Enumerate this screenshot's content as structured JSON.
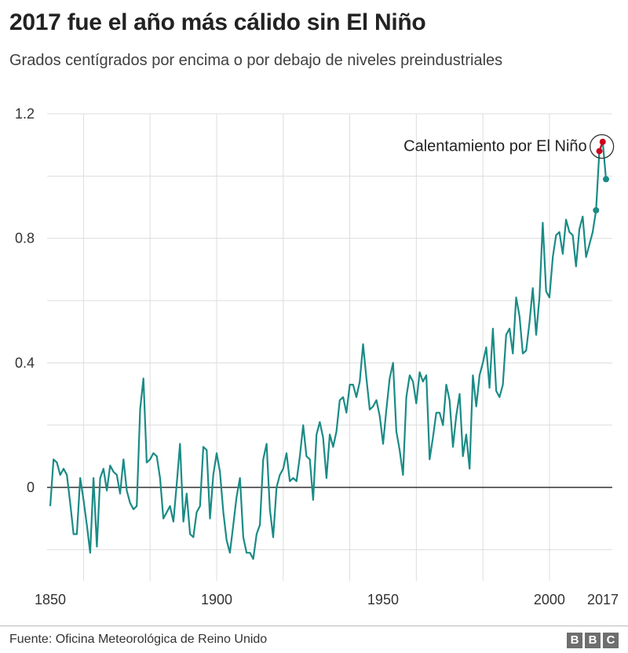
{
  "header": {
    "title": "2017 fue el año más cálido sin El Niño",
    "subtitle": "Grados centígrados por encima o por debajo de niveles preindustriales"
  },
  "footer": {
    "source": "Fuente: Oficina Meteorológica de Reino Unido",
    "logo": [
      "B",
      "B",
      "C"
    ]
  },
  "colors": {
    "line": "#1a8b86",
    "highlight": "#d0021b",
    "grid": "#dddddd",
    "zero_line": "#333333",
    "text": "#222222"
  },
  "chart_data": {
    "type": "line",
    "title": "2017 fue el año más cálido sin El Niño",
    "subtitle": "Grados centígrados por encima o por debajo de niveles preindustriales",
    "xlabel": "",
    "ylabel": "",
    "xlim": [
      1850,
      2018
    ],
    "ylim": [
      -0.3,
      1.2
    ],
    "x_ticks": [
      "1850",
      "1900",
      "1950",
      "2000",
      "2017"
    ],
    "x_tick_values": [
      1850,
      1900,
      1950,
      2000,
      2017
    ],
    "y_ticks": [
      "0",
      "0.4",
      "0.8",
      "1.2"
    ],
    "y_tick_values": [
      0,
      0.4,
      0.8,
      1.2
    ],
    "grid": true,
    "annotation": {
      "text": "Calentamiento por El Niño",
      "years": [
        2015,
        2016
      ]
    },
    "series": [
      {
        "start_year": 1850,
        "end_year": 2017,
        "values": [
          -0.06,
          0.09,
          0.08,
          0.04,
          0.06,
          0.04,
          -0.05,
          -0.15,
          -0.15,
          0.03,
          -0.04,
          -0.12,
          -0.21,
          0.03,
          -0.19,
          0.03,
          0.06,
          -0.01,
          0.07,
          0.05,
          0.04,
          -0.02,
          0.09,
          -0.01,
          -0.05,
          -0.07,
          -0.06,
          0.25,
          0.35,
          0.08,
          0.09,
          0.11,
          0.1,
          0.03,
          -0.1,
          -0.08,
          -0.06,
          -0.11,
          0.01,
          0.14,
          -0.11,
          -0.02,
          -0.15,
          -0.16,
          -0.08,
          -0.06,
          0.13,
          0.12,
          -0.1,
          0.04,
          0.11,
          0.05,
          -0.08,
          -0.17,
          -0.21,
          -0.12,
          -0.03,
          0.03,
          -0.16,
          -0.21,
          -0.21,
          -0.23,
          -0.15,
          -0.12,
          0.09,
          0.14,
          -0.07,
          -0.16,
          0.0,
          0.04,
          0.06,
          0.11,
          0.02,
          0.03,
          0.02,
          0.1,
          0.2,
          0.1,
          0.09,
          -0.04,
          0.17,
          0.21,
          0.16,
          0.03,
          0.17,
          0.13,
          0.18,
          0.28,
          0.29,
          0.24,
          0.33,
          0.33,
          0.29,
          0.34,
          0.46,
          0.35,
          0.25,
          0.26,
          0.28,
          0.23,
          0.14,
          0.25,
          0.35,
          0.4,
          0.18,
          0.12,
          0.04,
          0.29,
          0.36,
          0.34,
          0.27,
          0.37,
          0.34,
          0.36,
          0.09,
          0.16,
          0.24,
          0.24,
          0.2,
          0.33,
          0.28,
          0.13,
          0.23,
          0.3,
          0.1,
          0.17,
          0.06,
          0.36,
          0.26,
          0.36,
          0.4,
          0.45,
          0.32,
          0.51,
          0.31,
          0.29,
          0.33,
          0.49,
          0.51,
          0.43,
          0.61,
          0.55,
          0.43,
          0.44,
          0.53,
          0.64,
          0.49,
          0.61,
          0.85,
          0.63,
          0.61,
          0.74,
          0.81,
          0.82,
          0.75,
          0.86,
          0.82,
          0.81,
          0.71,
          0.83,
          0.87,
          0.74,
          0.78,
          0.82,
          0.89,
          1.08,
          1.11,
          0.99
        ]
      }
    ]
  }
}
